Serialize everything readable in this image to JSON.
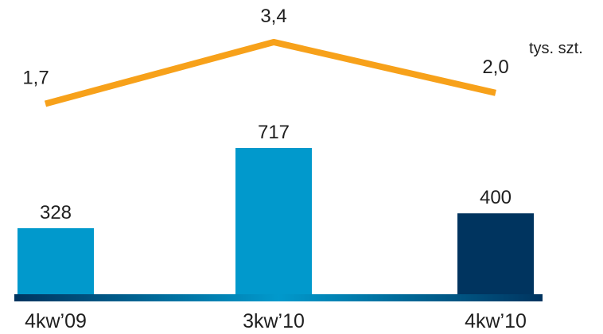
{
  "chart_data": [
    {
      "type": "bar",
      "categories": [
        "4kw'09",
        "3kw'10",
        "4kw'10"
      ],
      "category_labels": [
        "4kw’09",
        "3kw’10",
        "4kw’10"
      ],
      "values": [
        328,
        717,
        400
      ],
      "value_labels": [
        "328",
        "717",
        "400"
      ],
      "colors": [
        "#0199cc",
        "#0199cc",
        "#00345f"
      ],
      "ylim": [
        0,
        800
      ],
      "title": "",
      "xlabel": "",
      "ylabel": ""
    },
    {
      "type": "line",
      "categories": [
        "4kw'09",
        "3kw'10",
        "4kw'10"
      ],
      "values": [
        1.7,
        3.4,
        2.0
      ],
      "value_labels": [
        "1,7",
        "3,4",
        "2,0"
      ],
      "unit": "tys. szt.",
      "color": "#f7a11a",
      "ylim": [
        0,
        4
      ]
    }
  ],
  "axis": {
    "gradient": [
      "#00345f",
      "#0199cc",
      "#00345f"
    ]
  }
}
